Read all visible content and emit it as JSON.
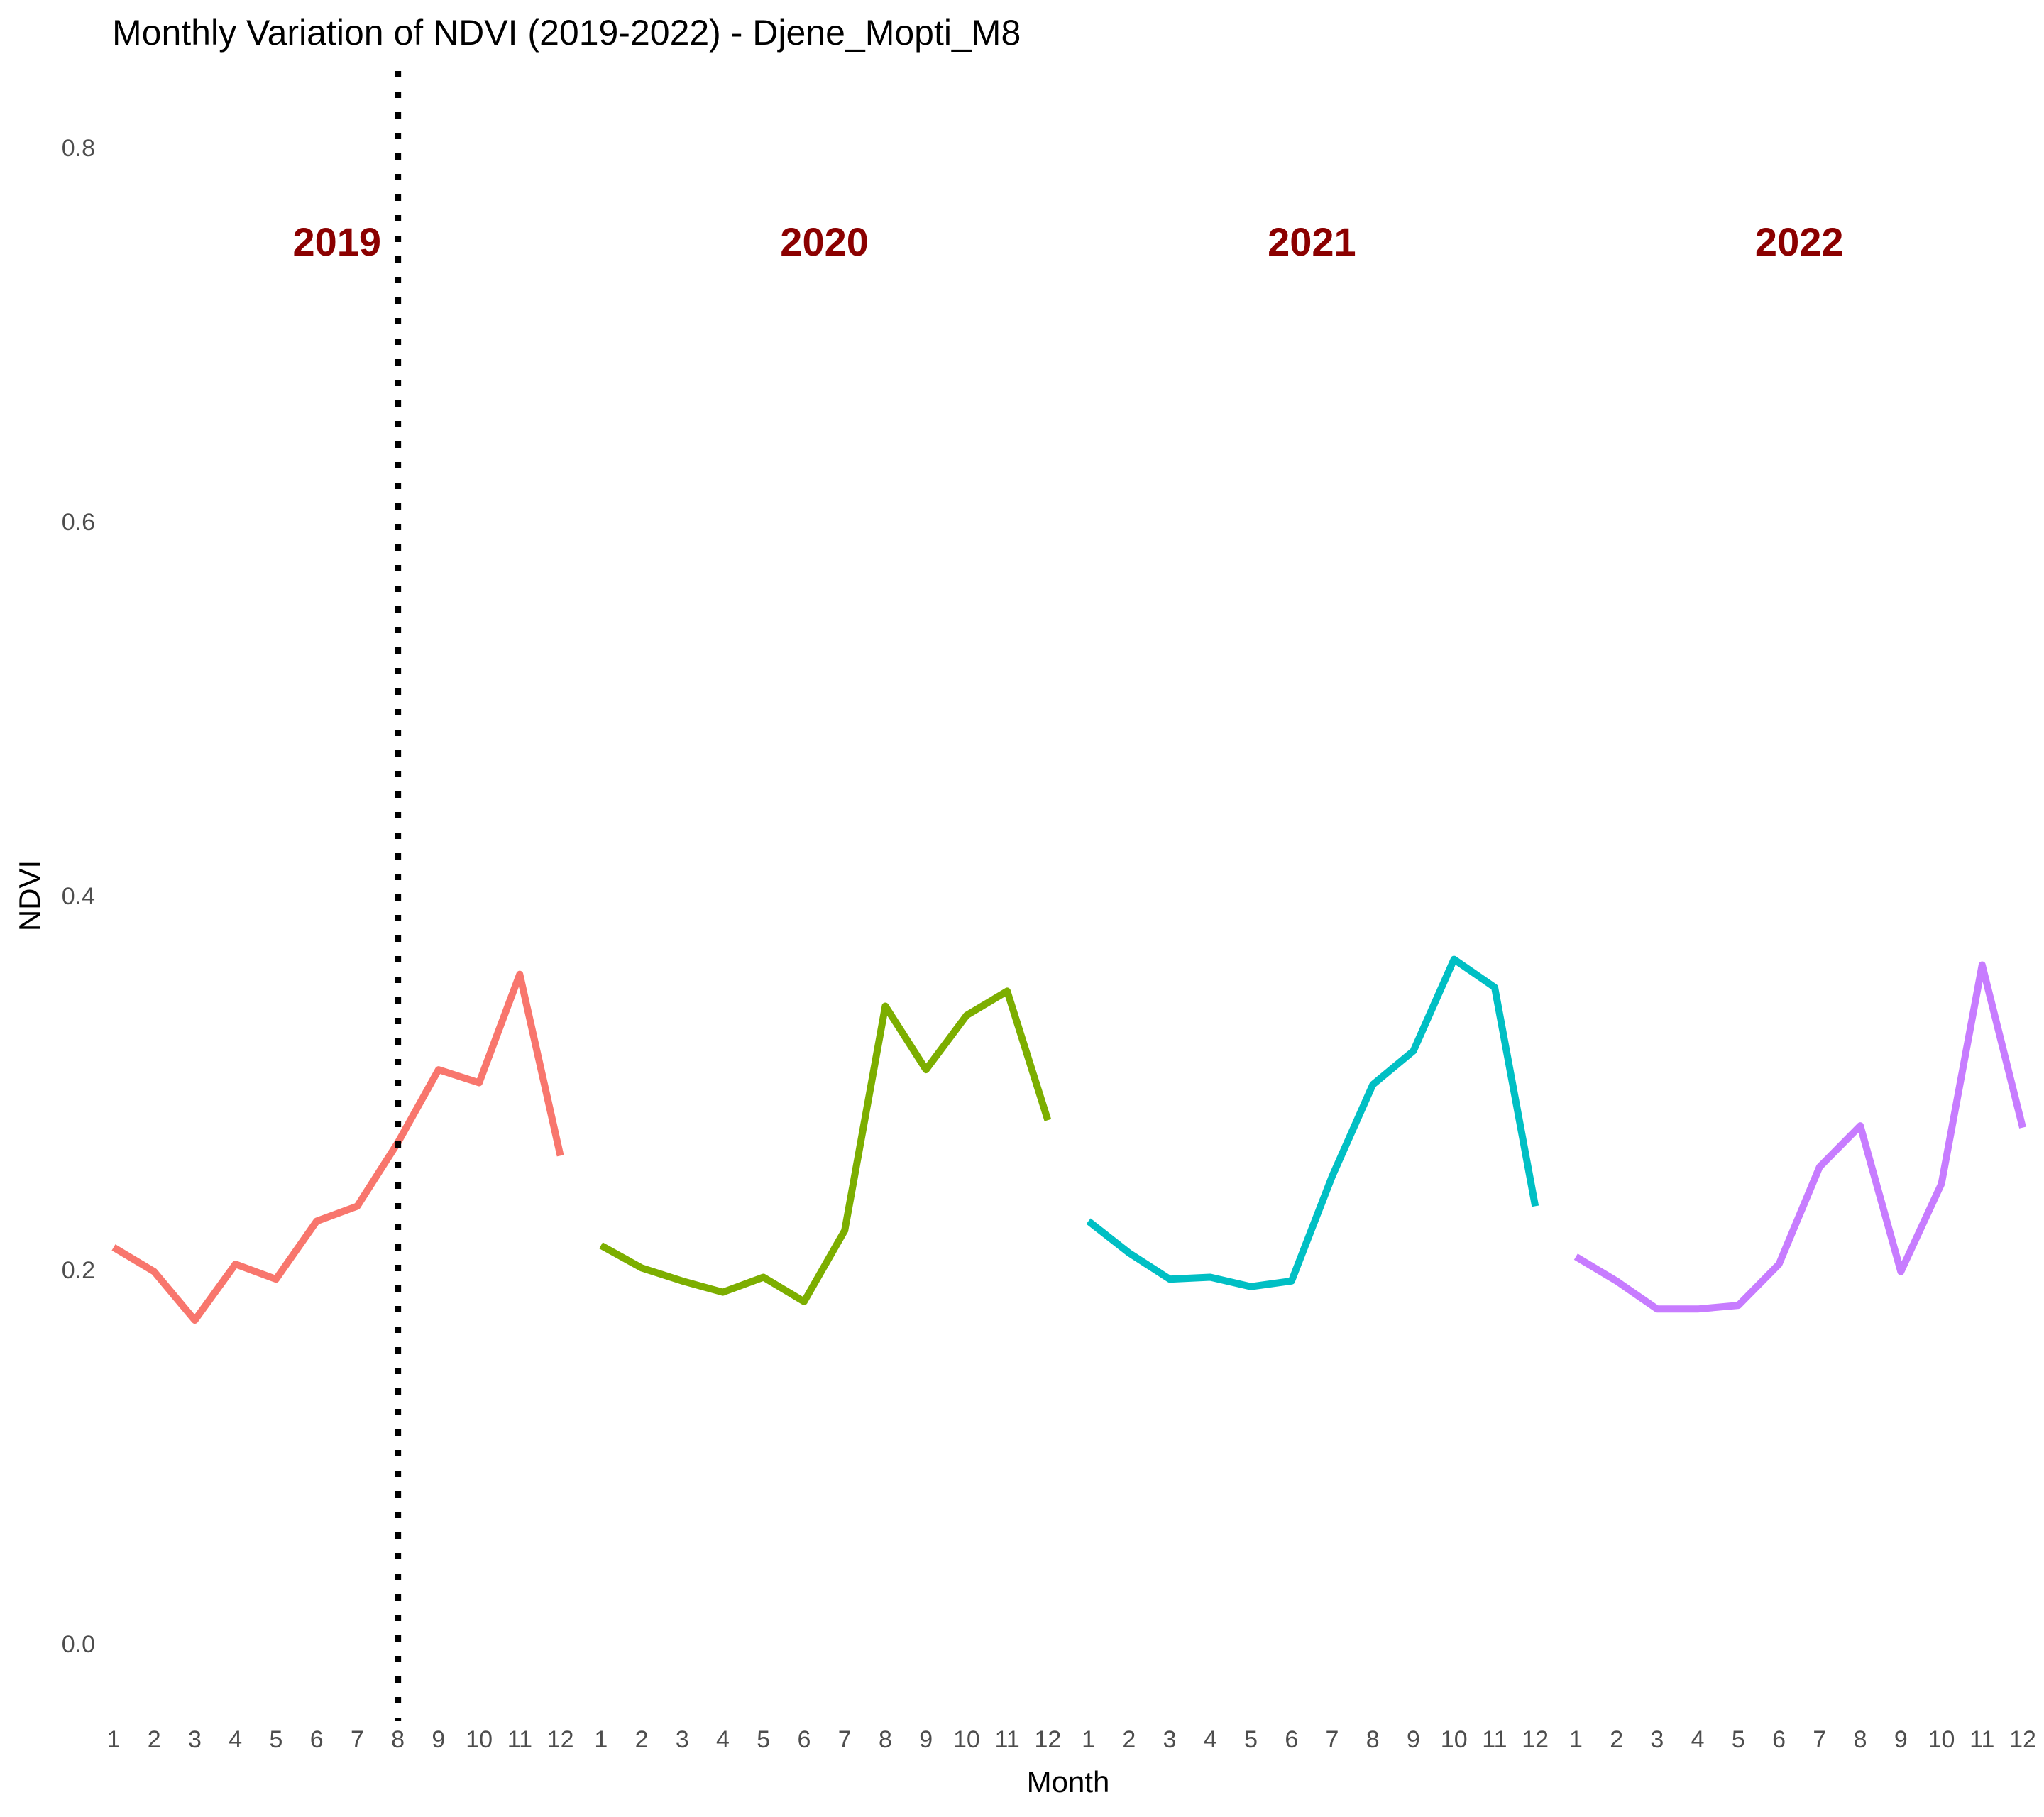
{
  "chart_data": {
    "type": "line",
    "title": "Monthly Variation of NDVI (2019-2022) - Djene_Mopti_M8",
    "xlabel": "Month",
    "ylabel": "NDVI",
    "ylim": [
      -0.04,
      0.84
    ],
    "yticks": [
      "0.0",
      "0.2",
      "0.4",
      "0.6",
      "0.8"
    ],
    "ytick_values": [
      0.0,
      0.2,
      0.4,
      0.6,
      0.8
    ],
    "xtick_labels": [
      "1",
      "2",
      "3",
      "4",
      "5",
      "6",
      "7",
      "8",
      "9",
      "10",
      "11",
      "12",
      "1",
      "2",
      "3",
      "4",
      "5",
      "6",
      "7",
      "8",
      "9",
      "10",
      "11",
      "12",
      "1",
      "2",
      "3",
      "4",
      "5",
      "6",
      "7",
      "8",
      "9",
      "10",
      "11",
      "12",
      "1",
      "2",
      "3",
      "4",
      "5",
      "6",
      "7",
      "8",
      "9",
      "10",
      "11",
      "12"
    ],
    "grid": false,
    "legend": "none",
    "vline": {
      "after_index": 7,
      "style": "dotted",
      "color": "#000000"
    },
    "year_label_color": "#8b0000",
    "series": [
      {
        "name": "2019",
        "color": "#f8766d",
        "values": [
          0.212,
          0.199,
          0.173,
          0.203,
          0.195,
          0.226,
          0.234,
          0.268,
          0.307,
          0.3,
          0.358,
          0.261
        ]
      },
      {
        "name": "2020",
        "color": "#7cae00",
        "values": [
          0.213,
          0.201,
          0.194,
          0.188,
          0.196,
          0.183,
          0.221,
          0.341,
          0.307,
          0.336,
          0.349,
          0.28
        ]
      },
      {
        "name": "2021",
        "color": "#00bfc4",
        "values": [
          0.226,
          0.209,
          0.195,
          0.196,
          0.191,
          0.194,
          0.25,
          0.299,
          0.317,
          0.366,
          0.351,
          0.234
        ]
      },
      {
        "name": "2022",
        "color": "#c77cff",
        "values": [
          0.207,
          0.194,
          0.179,
          0.179,
          0.181,
          0.203,
          0.255,
          0.277,
          0.199,
          0.246,
          0.363,
          0.276
        ]
      }
    ]
  }
}
